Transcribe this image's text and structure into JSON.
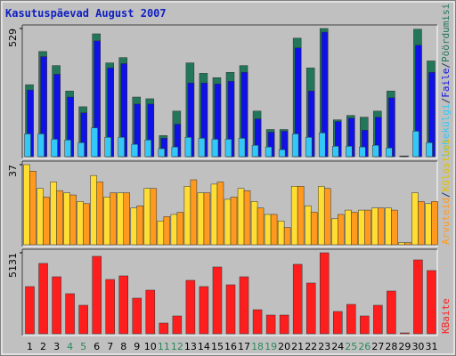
{
  "chart_data": [
    {
      "type": "bar",
      "title": "Kasutuspäevad August 2007",
      "legend_separator": "/",
      "ylim": [
        0,
        529
      ],
      "yticks": [
        529
      ],
      "series": [
        {
          "name": "Pöördumisi",
          "color": "#22775a",
          "values": [
            297,
            434,
            376,
            271,
            206,
            507,
            387,
            409,
            246,
            239,
            87,
            188,
            387,
            344,
            326,
            348,
            376,
            188,
            112,
            112,
            489,
            366,
            529,
            152,
            170,
            163,
            188,
            271,
            3,
            526,
            395
          ]
        },
        {
          "name": "Faile",
          "color": "#1010e8",
          "values": [
            275,
            413,
            340,
            246,
            181,
            478,
            366,
            384,
            217,
            217,
            76,
            134,
            304,
            304,
            300,
            311,
            348,
            156,
            101,
            105,
            449,
            271,
            514,
            145,
            159,
            109,
            163,
            243,
            2,
            460,
            348
          ]
        },
        {
          "name": "Lehekülgi",
          "color": "#33c8f8",
          "values": [
            94,
            94,
            72,
            69,
            58,
            119,
            80,
            80,
            51,
            69,
            33,
            40,
            80,
            76,
            72,
            72,
            76,
            47,
            40,
            29,
            94,
            80,
            98,
            43,
            43,
            40,
            47,
            36,
            1,
            105,
            58
          ]
        }
      ]
    },
    {
      "type": "bar",
      "legend_separator": "/",
      "ylim": [
        0,
        37
      ],
      "yticks": [
        37
      ],
      "series": [
        {
          "name": "Külastusi",
          "color": "#ffdd33",
          "values": [
            37,
            26,
            29,
            24,
            20,
            32,
            22,
            24,
            17,
            26,
            11,
            14,
            27,
            24,
            28,
            21,
            26,
            20,
            14,
            11,
            27,
            18,
            27,
            12,
            16,
            16,
            17,
            17,
            1,
            24,
            19
          ]
        },
        {
          "name": "Arvuteid",
          "color": "#ff9a1e",
          "values": [
            34,
            22,
            25,
            23,
            19,
            29,
            24,
            24,
            18,
            26,
            13,
            15,
            30,
            24,
            29,
            22,
            25,
            17,
            14,
            8,
            27,
            15,
            26,
            14,
            15,
            16,
            17,
            16,
            1,
            20,
            20
          ]
        }
      ]
    },
    {
      "type": "bar",
      "ylim": [
        0,
        5131
      ],
      "yticks": [
        5131
      ],
      "categories": [
        "1",
        "2",
        "3",
        "4",
        "5",
        "6",
        "7",
        "8",
        "9",
        "10",
        "11",
        "12",
        "13",
        "14",
        "15",
        "16",
        "17",
        "18",
        "19",
        "20",
        "21",
        "22",
        "23",
        "24",
        "25",
        "26",
        "27",
        "28",
        "29",
        "30",
        "31"
      ],
      "category_colors": [
        "#000000",
        "#000000",
        "#000000",
        "#2a8a5a",
        "#2a8a5a",
        "#000000",
        "#000000",
        "#000000",
        "#000000",
        "#000000",
        "#2a8a5a",
        "#2a8a5a",
        "#000000",
        "#000000",
        "#000000",
        "#000000",
        "#000000",
        "#2a8a5a",
        "#2a8a5a",
        "#000000",
        "#000000",
        "#000000",
        "#000000",
        "#000000",
        "#2a8a5a",
        "#2a8a5a",
        "#000000",
        "#000000",
        "#000000",
        "#000000",
        "#000000"
      ],
      "series": [
        {
          "name": "KBaite",
          "color": "#ff1e1e",
          "values": [
            2989,
            4456,
            3610,
            2538,
            1805,
            4907,
            3440,
            3666,
            2256,
            2764,
            677,
            1128,
            3384,
            2989,
            4230,
            3102,
            3610,
            1523,
            1184,
            1184,
            4399,
            3215,
            5131,
            1410,
            1861,
            1128,
            1805,
            2707,
            56,
            4681,
            4004
          ]
        }
      ]
    }
  ]
}
